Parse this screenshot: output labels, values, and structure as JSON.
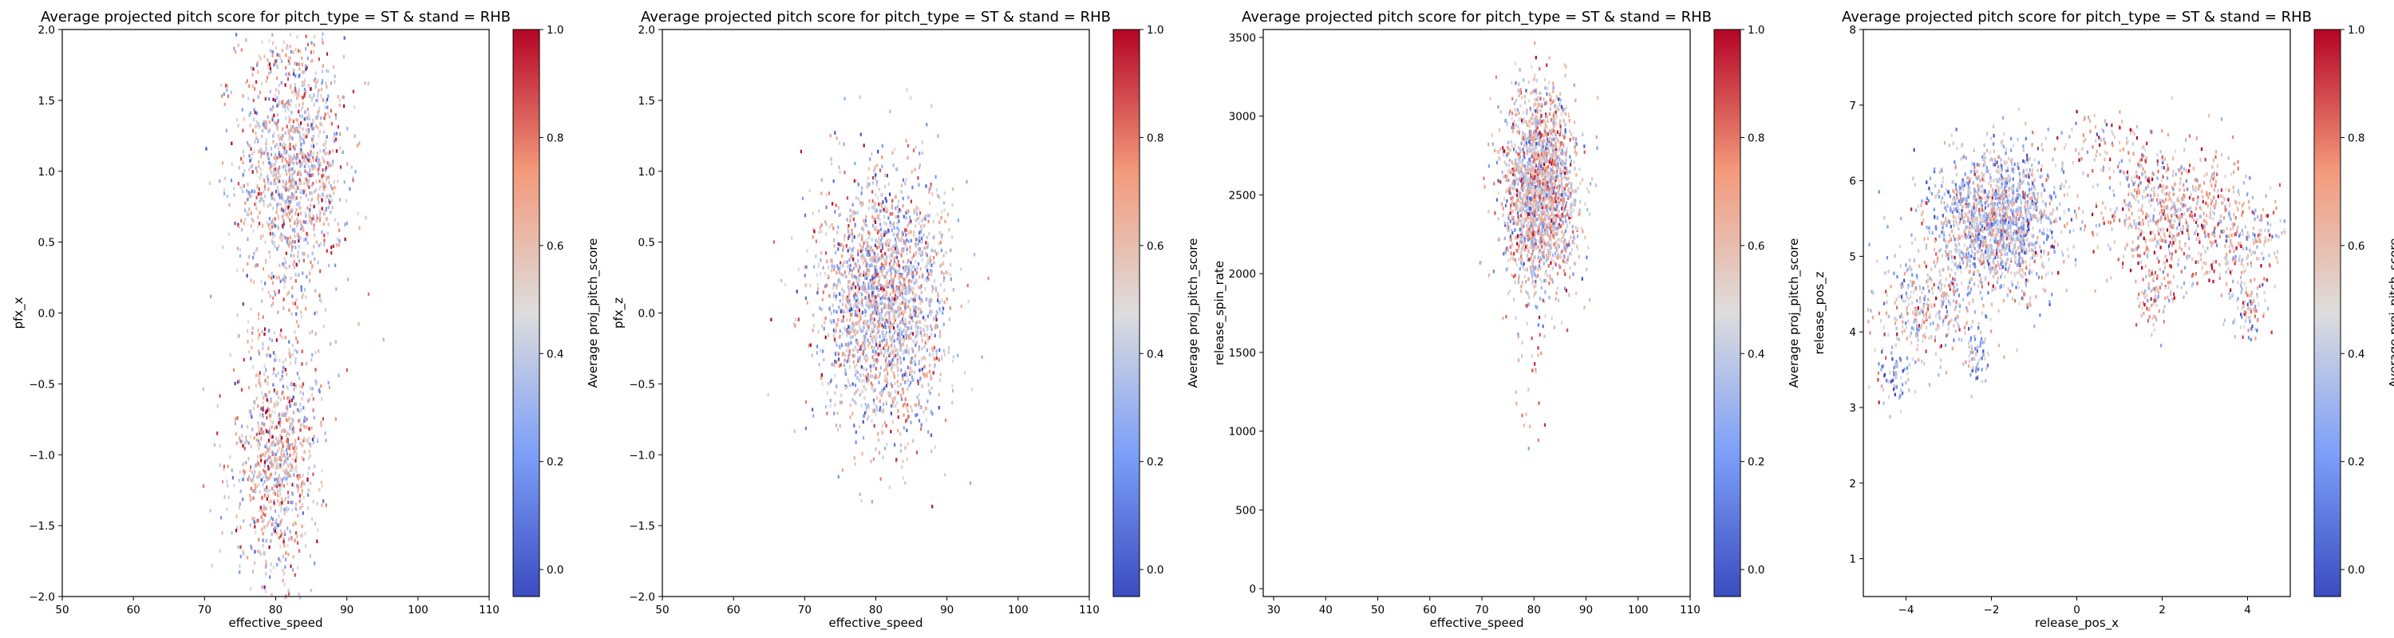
{
  "chart_data": [
    {
      "type": "heatmap",
      "title": "Average projected pitch score for pitch_type = ST & stand = RHB",
      "xlabel": "effective_speed",
      "ylabel": "pfx_x",
      "xlim": [
        50,
        110
      ],
      "ylim": [
        -2.0,
        2.0
      ],
      "xticks": [
        50,
        60,
        70,
        80,
        90,
        100,
        110
      ],
      "yticks": [
        -2.0,
        -1.5,
        -1.0,
        -0.5,
        0.0,
        0.5,
        1.0,
        1.5,
        2.0
      ],
      "yticklabels": [
        "−2.0",
        "−1.5",
        "−1.0",
        "−0.5",
        "0.0",
        "0.5",
        "1.0",
        "1.5",
        "2.0"
      ],
      "colorbar": {
        "label": "Average proj_pitch_score",
        "range": [
          -0.05,
          1.0
        ],
        "ticks": [
          0.0,
          0.2,
          0.4,
          0.6,
          0.8,
          1.0
        ],
        "ticklabels": [
          "0.0",
          "0.2",
          "0.4",
          "0.6",
          "0.8",
          "1.0"
        ],
        "colormap": "coolwarm"
      },
      "clusters": [
        {
          "center": [
            82,
            1.05
          ],
          "spread": [
            3.8,
            0.5
          ],
          "count": 1300,
          "mean_score": 0.55
        },
        {
          "center": [
            80,
            -1.0
          ],
          "spread": [
            3.0,
            0.45
          ],
          "count": 900,
          "mean_score": 0.55
        }
      ],
      "grid": false
    },
    {
      "type": "heatmap",
      "title": "Average projected pitch score for pitch_type = ST & stand = RHB",
      "xlabel": "effective_speed",
      "ylabel": "pfx_z",
      "xlim": [
        50,
        110
      ],
      "ylim": [
        -2.0,
        2.0
      ],
      "xticks": [
        50,
        60,
        70,
        80,
        90,
        100,
        110
      ],
      "yticks": [
        -2.0,
        -1.5,
        -1.0,
        -0.5,
        0.0,
        0.5,
        1.0,
        1.5,
        2.0
      ],
      "yticklabels": [
        "−2.0",
        "−1.5",
        "−1.0",
        "−0.5",
        "0.0",
        "0.5",
        "1.0",
        "1.5",
        "2.0"
      ],
      "colorbar": {
        "label": "Average proj_pitch_score",
        "range": [
          -0.05,
          1.0
        ],
        "ticks": [
          0.0,
          0.2,
          0.4,
          0.6,
          0.8,
          1.0
        ],
        "ticklabels": [
          "0.0",
          "0.2",
          "0.4",
          "0.6",
          "0.8",
          "1.0"
        ],
        "colormap": "coolwarm"
      },
      "clusters": [
        {
          "center": [
            81,
            0.1
          ],
          "spread": [
            4.5,
            0.45
          ],
          "count": 2200,
          "mean_score": 0.5
        }
      ],
      "grid": false
    },
    {
      "type": "heatmap",
      "title": "Average projected pitch score for pitch_type = ST & stand = RHB",
      "xlabel": "effective_speed",
      "ylabel": "release_spin_rate",
      "xlim": [
        28,
        110
      ],
      "ylim": [
        -50,
        3550
      ],
      "xticks": [
        30,
        40,
        50,
        60,
        70,
        80,
        90,
        100,
        110
      ],
      "yticks": [
        0,
        500,
        1000,
        1500,
        2000,
        2500,
        3000,
        3500
      ],
      "yticklabels": [
        "0",
        "500",
        "1000",
        "1500",
        "2000",
        "2500",
        "3000",
        "3500"
      ],
      "colorbar": {
        "label": "Average proj_pitch_score",
        "range": [
          -0.05,
          1.0
        ],
        "ticks": [
          0.0,
          0.2,
          0.4,
          0.6,
          0.8,
          1.0
        ],
        "ticklabels": [
          "0.0",
          "0.2",
          "0.4",
          "0.6",
          "0.8",
          "1.0"
        ],
        "colormap": "coolwarm"
      },
      "clusters": [
        {
          "center": [
            81,
            2550
          ],
          "spread": [
            3.5,
            300
          ],
          "count": 2000,
          "mean_score": 0.55
        },
        {
          "center": [
            80,
            1400
          ],
          "spread": [
            2.0,
            180
          ],
          "count": 25,
          "mean_score": 0.6
        }
      ],
      "grid": false
    },
    {
      "type": "heatmap",
      "title": "Average projected pitch score for pitch_type = ST & stand = RHB",
      "xlabel": "release_pos_x",
      "ylabel": "release_pos_z",
      "xlim": [
        -5.0,
        5.0
      ],
      "ylim": [
        0.5,
        8.0
      ],
      "xticks": [
        -4,
        -2,
        0,
        2,
        4
      ],
      "xticklabels": [
        "−4",
        "−2",
        "0",
        "2",
        "4"
      ],
      "yticks": [
        1,
        2,
        3,
        4,
        5,
        6,
        7,
        8
      ],
      "yticklabels": [
        "1",
        "2",
        "3",
        "4",
        "5",
        "6",
        "7",
        "8"
      ],
      "colorbar": {
        "label": "Average proj_pitch_score",
        "range": [
          -0.05,
          1.0
        ],
        "ticks": [
          0.0,
          0.2,
          0.4,
          0.6,
          0.8,
          1.0
        ],
        "ticklabels": [
          "0.0",
          "0.2",
          "0.4",
          "0.6",
          "0.8",
          "1.0"
        ],
        "colormap": "coolwarm"
      },
      "clusters": [
        {
          "center": [
            -1.9,
            5.5
          ],
          "spread": [
            0.75,
            0.45
          ],
          "count": 1600,
          "mean_score": 0.45
        },
        {
          "center": [
            -3.6,
            4.3
          ],
          "spread": [
            0.7,
            0.35
          ],
          "count": 350,
          "mean_score": 0.5
        },
        {
          "center": [
            -4.3,
            3.4
          ],
          "spread": [
            0.2,
            0.2
          ],
          "count": 60,
          "mean_score": 0.35
        },
        {
          "center": [
            -2.3,
            3.7
          ],
          "spread": [
            0.2,
            0.2
          ],
          "count": 60,
          "mean_score": 0.4
        },
        {
          "center": [
            2.2,
            5.6
          ],
          "spread": [
            0.9,
            0.45
          ],
          "count": 700,
          "mean_score": 0.62
        },
        {
          "center": [
            3.9,
            5.2
          ],
          "spread": [
            0.45,
            0.35
          ],
          "count": 180,
          "mean_score": 0.58
        },
        {
          "center": [
            1.8,
            4.5
          ],
          "spread": [
            0.25,
            0.25
          ],
          "count": 90,
          "mean_score": 0.62
        },
        {
          "center": [
            4.0,
            4.3
          ],
          "spread": [
            0.3,
            0.2
          ],
          "count": 80,
          "mean_score": 0.55
        },
        {
          "center": [
            0.6,
            6.6
          ],
          "spread": [
            0.4,
            0.15
          ],
          "count": 60,
          "mean_score": 0.6
        }
      ],
      "grid": false
    }
  ]
}
